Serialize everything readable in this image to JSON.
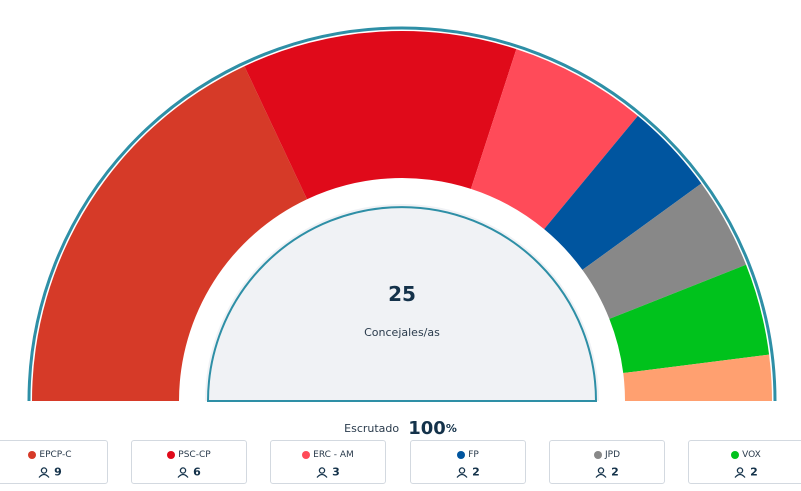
{
  "hemicycle": {
    "total": "25",
    "label": "Concejales/as",
    "total_seats": 25
  },
  "scrutiny": {
    "label": "Escrutado",
    "value": "100",
    "unit": "%"
  },
  "parties": [
    {
      "name": "EPCP-C",
      "seats": "9",
      "color": "#d63a28"
    },
    {
      "name": "PSC-CP",
      "seats": "6",
      "color": "#e00a1a"
    },
    {
      "name": "ERC - AM",
      "seats": "3",
      "color": "#ff4b59"
    },
    {
      "name": "FP",
      "seats": "2",
      "color": "#00559f"
    },
    {
      "name": "JPD",
      "seats": "2",
      "color": "#888888"
    },
    {
      "name": "VOX",
      "seats": "2",
      "color": "#00c21c"
    },
    {
      "name": "",
      "seats": "1",
      "color": "#ffa070"
    }
  ],
  "colors": {
    "outline": "#2e8fa6",
    "center_fill": "#f0f2f5"
  }
}
